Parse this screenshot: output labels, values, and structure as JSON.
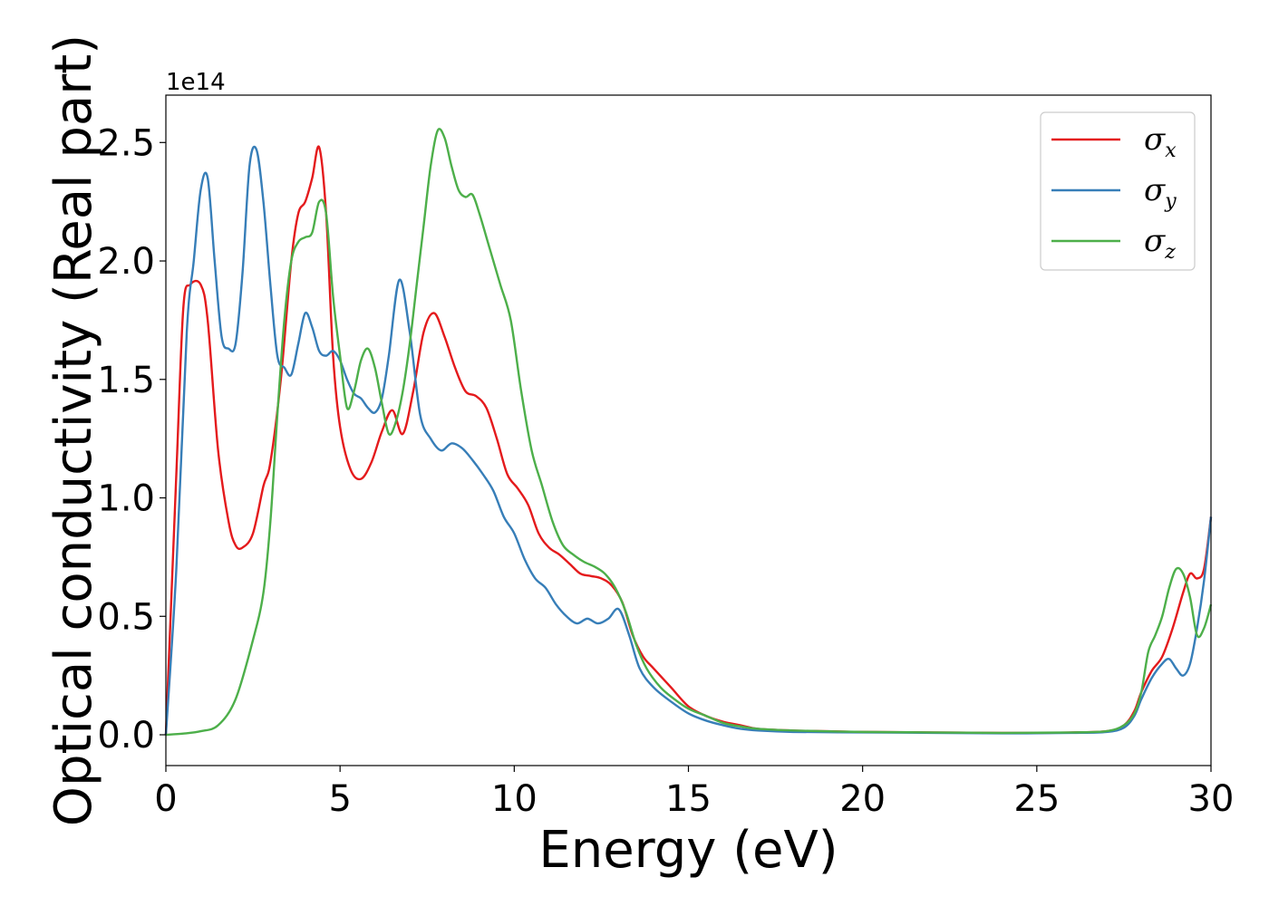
{
  "chart_data": {
    "type": "line",
    "title": "",
    "xlabel": "Energy (eV)",
    "ylabel": "Optical conductivity (Real part)",
    "y_offset_text": "1e14",
    "xlim": [
      0,
      30
    ],
    "ylim": [
      -0.13,
      2.7
    ],
    "xticks": [
      0,
      5,
      10,
      15,
      20,
      25,
      30
    ],
    "xtick_labels": [
      "0",
      "5",
      "10",
      "15",
      "20",
      "25",
      "30"
    ],
    "yticks": [
      0.0,
      0.5,
      1.0,
      1.5,
      2.0,
      2.5
    ],
    "ytick_labels": [
      "0.0",
      "0.5",
      "1.0",
      "1.5",
      "2.0",
      "2.5"
    ],
    "grid": false,
    "legend_position": "top-right",
    "series": [
      {
        "name": "σx",
        "symbol": "σ",
        "subscript": "x",
        "color": "#e41a1c",
        "x": [
          0,
          0.3,
          0.5,
          0.7,
          1.0,
          1.2,
          1.5,
          1.8,
          2.0,
          2.2,
          2.5,
          2.8,
          3.0,
          3.3,
          3.6,
          3.8,
          4.0,
          4.2,
          4.4,
          4.6,
          4.8,
          5.0,
          5.3,
          5.6,
          5.9,
          6.2,
          6.5,
          6.8,
          7.1,
          7.4,
          7.7,
          8.0,
          8.3,
          8.6,
          8.9,
          9.2,
          9.5,
          9.8,
          10.1,
          10.4,
          10.7,
          11.0,
          11.3,
          11.6,
          11.9,
          12.2,
          12.5,
          12.8,
          13.1,
          13.4,
          13.7,
          14.0,
          14.5,
          15.0,
          15.5,
          16.0,
          16.5,
          17.0,
          18.0,
          19.0,
          20.0,
          22.0,
          24.0,
          25.0,
          26.0,
          27.0,
          27.5,
          27.8,
          28.0,
          28.3,
          28.6,
          28.9,
          29.2,
          29.4,
          29.6,
          29.8,
          30.0
        ],
        "y": [
          0.0,
          1.1,
          1.8,
          1.9,
          1.9,
          1.75,
          1.2,
          0.9,
          0.8,
          0.79,
          0.85,
          1.05,
          1.15,
          1.5,
          2.0,
          2.2,
          2.25,
          2.35,
          2.48,
          2.2,
          1.6,
          1.3,
          1.12,
          1.08,
          1.15,
          1.28,
          1.37,
          1.27,
          1.45,
          1.7,
          1.78,
          1.68,
          1.55,
          1.45,
          1.43,
          1.38,
          1.25,
          1.1,
          1.04,
          0.97,
          0.85,
          0.79,
          0.76,
          0.72,
          0.68,
          0.67,
          0.66,
          0.63,
          0.56,
          0.42,
          0.33,
          0.28,
          0.2,
          0.12,
          0.08,
          0.055,
          0.04,
          0.025,
          0.018,
          0.015,
          0.012,
          0.01,
          0.008,
          0.008,
          0.01,
          0.015,
          0.04,
          0.1,
          0.18,
          0.27,
          0.33,
          0.45,
          0.6,
          0.68,
          0.66,
          0.7,
          0.92
        ]
      },
      {
        "name": "σy",
        "symbol": "σ",
        "subscript": "y",
        "color": "#377eb8",
        "x": [
          0,
          0.3,
          0.6,
          0.8,
          1.0,
          1.2,
          1.4,
          1.6,
          1.8,
          2.0,
          2.2,
          2.4,
          2.6,
          2.8,
          3.0,
          3.2,
          3.4,
          3.6,
          3.8,
          4.0,
          4.2,
          4.4,
          4.6,
          4.8,
          5.0,
          5.2,
          5.4,
          5.6,
          5.8,
          6.0,
          6.2,
          6.4,
          6.7,
          7.0,
          7.3,
          7.6,
          7.9,
          8.2,
          8.5,
          8.8,
          9.1,
          9.4,
          9.7,
          10.0,
          10.3,
          10.6,
          10.9,
          11.2,
          11.5,
          11.8,
          12.1,
          12.4,
          12.7,
          13.0,
          13.3,
          13.6,
          14.0,
          14.5,
          15.0,
          15.5,
          16.0,
          16.5,
          17.0,
          18.0,
          20.0,
          22.0,
          24.0,
          26.0,
          27.0,
          27.5,
          27.8,
          28.0,
          28.3,
          28.6,
          28.8,
          29.0,
          29.2,
          29.4,
          29.6,
          29.8,
          30.0
        ],
        "y": [
          0.0,
          0.7,
          1.7,
          2.0,
          2.3,
          2.35,
          2.0,
          1.68,
          1.63,
          1.65,
          1.95,
          2.4,
          2.47,
          2.25,
          1.9,
          1.6,
          1.55,
          1.52,
          1.65,
          1.78,
          1.72,
          1.62,
          1.6,
          1.62,
          1.58,
          1.5,
          1.44,
          1.42,
          1.38,
          1.36,
          1.42,
          1.6,
          1.92,
          1.7,
          1.35,
          1.25,
          1.2,
          1.23,
          1.21,
          1.16,
          1.1,
          1.03,
          0.92,
          0.85,
          0.74,
          0.66,
          0.62,
          0.55,
          0.5,
          0.47,
          0.49,
          0.47,
          0.49,
          0.53,
          0.42,
          0.28,
          0.2,
          0.14,
          0.09,
          0.06,
          0.04,
          0.025,
          0.018,
          0.012,
          0.01,
          0.008,
          0.006,
          0.008,
          0.012,
          0.03,
          0.08,
          0.15,
          0.24,
          0.3,
          0.32,
          0.28,
          0.25,
          0.3,
          0.45,
          0.65,
          0.92
        ]
      },
      {
        "name": "σz",
        "symbol": "σ",
        "subscript": "z",
        "color": "#4daf4a",
        "x": [
          0,
          0.5,
          1.0,
          1.5,
          2.0,
          2.5,
          2.8,
          3.0,
          3.2,
          3.4,
          3.6,
          3.8,
          4.0,
          4.2,
          4.4,
          4.6,
          4.8,
          5.0,
          5.2,
          5.4,
          5.6,
          5.8,
          6.0,
          6.2,
          6.4,
          6.6,
          6.8,
          7.0,
          7.2,
          7.4,
          7.6,
          7.8,
          8.0,
          8.2,
          8.4,
          8.6,
          8.8,
          9.0,
          9.3,
          9.6,
          9.9,
          10.2,
          10.5,
          10.8,
          11.1,
          11.4,
          11.7,
          12.0,
          12.3,
          12.6,
          12.9,
          13.2,
          13.5,
          13.8,
          14.2,
          14.6,
          15.0,
          15.5,
          16.0,
          16.5,
          17.0,
          18.0,
          20.0,
          22.0,
          24.0,
          26.0,
          27.0,
          27.5,
          27.8,
          28.0,
          28.2,
          28.4,
          28.6,
          28.8,
          29.0,
          29.2,
          29.4,
          29.6,
          29.8,
          30.0
        ],
        "y": [
          0.0,
          0.005,
          0.015,
          0.04,
          0.15,
          0.4,
          0.6,
          0.9,
          1.35,
          1.75,
          2.0,
          2.08,
          2.1,
          2.12,
          2.25,
          2.2,
          1.85,
          1.6,
          1.38,
          1.45,
          1.58,
          1.63,
          1.55,
          1.4,
          1.27,
          1.32,
          1.45,
          1.65,
          1.9,
          2.15,
          2.4,
          2.55,
          2.52,
          2.4,
          2.3,
          2.27,
          2.28,
          2.2,
          2.05,
          1.9,
          1.75,
          1.45,
          1.2,
          1.05,
          0.9,
          0.8,
          0.76,
          0.73,
          0.71,
          0.68,
          0.62,
          0.52,
          0.38,
          0.28,
          0.2,
          0.15,
          0.11,
          0.08,
          0.05,
          0.035,
          0.025,
          0.018,
          0.012,
          0.01,
          0.008,
          0.01,
          0.015,
          0.04,
          0.09,
          0.18,
          0.35,
          0.42,
          0.5,
          0.62,
          0.7,
          0.68,
          0.58,
          0.42,
          0.45,
          0.55
        ]
      }
    ]
  }
}
